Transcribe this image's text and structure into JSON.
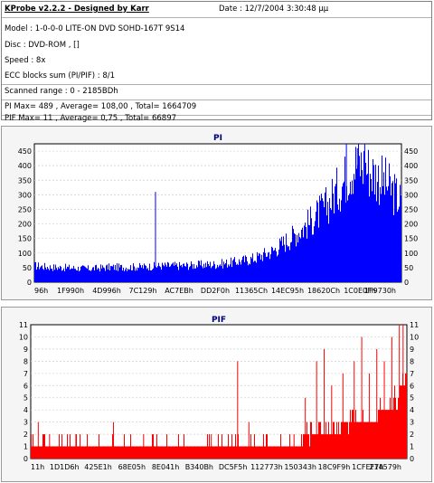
{
  "header": {
    "app_title": "KProbe v2.2.2 - Designed by Karr",
    "date": "Date : 12/7/2004 3:30:48 μμ",
    "model": "Model : 1-0-0-0 LITE-ON DVD SOHD-167T    9S14",
    "disc": "Disc : DVD-ROM ,  []",
    "speed": "Speed : 8x",
    "ecc": "ECC blocks sum (PI/PIF) : 8/1",
    "range": "Scanned range : 0 - 2185BDh",
    "pi_stats": "PI Max= 489 , Average= 108,00 , Total= 1664709",
    "pif_stats": "PIF Max= 11 , Average= 0,75 , Total= 66897"
  },
  "colors": {
    "pi": "#0000ff",
    "pif": "#ff0000",
    "grid": "#d0d0d0",
    "title": "#000080"
  },
  "chart_data": [
    {
      "type": "area",
      "title": "PI",
      "ylim": [
        0,
        475
      ],
      "yticks": [
        0,
        50,
        100,
        150,
        200,
        250,
        300,
        350,
        400,
        450
      ],
      "xtick_labels": [
        "96h",
        "1F990h",
        "4D996h",
        "7C129h",
        "AC7EBh",
        "DD2F0h",
        "11365Ch",
        "14EC95h",
        "18620Ch",
        "1C0E0Fh",
        "1F9730h"
      ],
      "x_fraction": [
        0,
        0.05,
        0.1,
        0.15,
        0.2,
        0.25,
        0.3,
        0.35,
        0.4,
        0.45,
        0.5,
        0.55,
        0.6,
        0.65,
        0.7,
        0.75,
        0.8,
        0.82,
        0.84,
        0.86,
        0.88,
        0.9,
        0.92,
        0.94,
        0.96,
        0.98,
        1
      ],
      "values": [
        55,
        50,
        48,
        45,
        50,
        50,
        52,
        55,
        55,
        58,
        60,
        68,
        80,
        105,
        150,
        200,
        260,
        300,
        330,
        380,
        400,
        390,
        370,
        350,
        330,
        300,
        270
      ],
      "peaks": [
        {
          "x": 0.33,
          "value": 310
        },
        {
          "x": 0.85,
          "value": 475
        },
        {
          "x": 0.9,
          "value": 480
        },
        {
          "x": 0.88,
          "value": 460
        }
      ]
    },
    {
      "type": "area",
      "title": "PIF",
      "ylim": [
        0,
        11
      ],
      "yticks": [
        0,
        1,
        2,
        3,
        4,
        5,
        6,
        7,
        8,
        9,
        10,
        11
      ],
      "xtick_labels": [
        "11h",
        "1D1D6h",
        "425E1h",
        "68E05h",
        "8E041h",
        "B340Bh",
        "DC5F5h",
        "112773h",
        "150343h",
        "18C9F9h",
        "1CFEF7h",
        "214579h"
      ],
      "x_fraction": [
        0,
        0.1,
        0.2,
        0.3,
        0.4,
        0.5,
        0.6,
        0.65,
        0.7,
        0.75,
        0.78,
        0.8,
        0.85,
        0.9,
        0.95,
        0.98,
        1
      ],
      "values": [
        1,
        1,
        1,
        1,
        1,
        1,
        1,
        1,
        1,
        2,
        2,
        2,
        3,
        3,
        4,
        5,
        7
      ],
      "spikes": [
        {
          "x": 0.02,
          "value": 3
        },
        {
          "x": 0.05,
          "value": 2
        },
        {
          "x": 0.12,
          "value": 2
        },
        {
          "x": 0.22,
          "value": 3
        },
        {
          "x": 0.3,
          "value": 2
        },
        {
          "x": 0.48,
          "value": 2
        },
        {
          "x": 0.55,
          "value": 8
        },
        {
          "x": 0.58,
          "value": 3
        },
        {
          "x": 0.7,
          "value": 2
        },
        {
          "x": 0.73,
          "value": 5
        },
        {
          "x": 0.76,
          "value": 8
        },
        {
          "x": 0.78,
          "value": 9
        },
        {
          "x": 0.8,
          "value": 6
        },
        {
          "x": 0.83,
          "value": 7
        },
        {
          "x": 0.86,
          "value": 8
        },
        {
          "x": 0.88,
          "value": 10
        },
        {
          "x": 0.9,
          "value": 7
        },
        {
          "x": 0.92,
          "value": 9
        },
        {
          "x": 0.94,
          "value": 8
        },
        {
          "x": 0.96,
          "value": 10
        },
        {
          "x": 0.98,
          "value": 11
        },
        {
          "x": 0.99,
          "value": 11
        }
      ]
    }
  ]
}
